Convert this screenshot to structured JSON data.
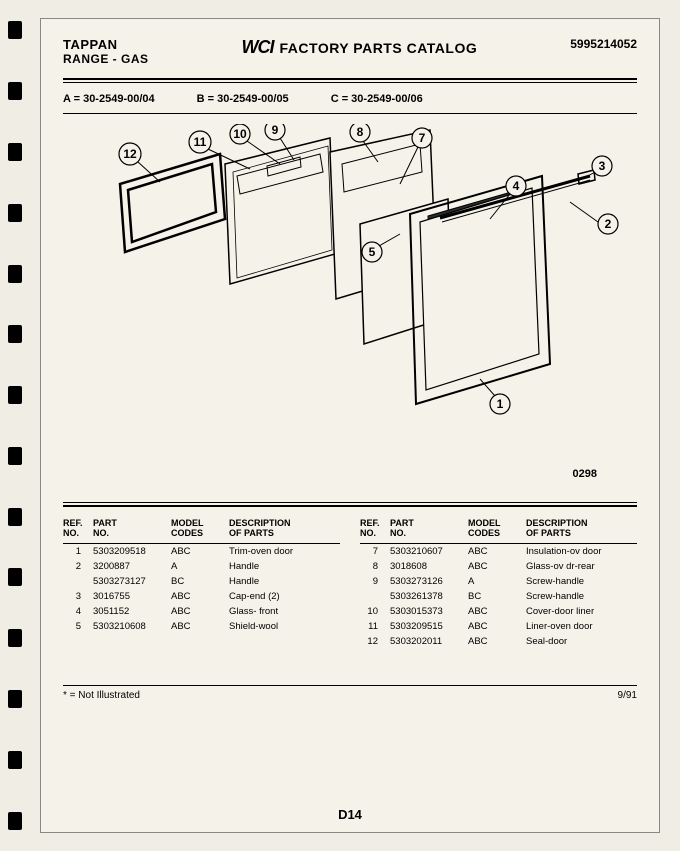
{
  "header": {
    "brand": "TAPPAN",
    "subbrand": "RANGE - GAS",
    "logo": "WCI",
    "title": "FACTORY PARTS CATALOG",
    "docno": "5995214052"
  },
  "models": {
    "a": "A = 30-2549-00/04",
    "b": "B = 30-2549-00/05",
    "c": "C = 30-2549-00/06"
  },
  "diagram": {
    "code": "0298",
    "callouts": [
      "1",
      "2",
      "3",
      "4",
      "5",
      "7",
      "8",
      "9",
      "10",
      "11",
      "12"
    ],
    "stroke": "#000000",
    "dark_fill": "#2a2a2a",
    "bg": "#f5f2e9"
  },
  "table": {
    "headers": {
      "ref": "REF.\nNO.",
      "part": "PART\nNO.",
      "model": "MODEL\nCODES",
      "desc": "DESCRIPTION\nOF PARTS"
    },
    "left": [
      {
        "ref": "1",
        "part": "5303209518",
        "model": "ABC",
        "desc": "Trim-oven door"
      },
      {
        "ref": "2",
        "part": "3200887",
        "model": "A",
        "desc": "Handle"
      },
      {
        "ref": "",
        "part": "5303273127",
        "model": "BC",
        "desc": "Handle"
      },
      {
        "ref": "3",
        "part": "3016755",
        "model": "ABC",
        "desc": "Cap-end (2)"
      },
      {
        "ref": "4",
        "part": "3051152",
        "model": "ABC",
        "desc": "Glass- front"
      },
      {
        "ref": "5",
        "part": "5303210608",
        "model": "ABC",
        "desc": "Shield-wool"
      }
    ],
    "right": [
      {
        "ref": "7",
        "part": "5303210607",
        "model": "ABC",
        "desc": "Insulation-ov door"
      },
      {
        "ref": "8",
        "part": "3018608",
        "model": "ABC",
        "desc": "Glass-ov dr-rear"
      },
      {
        "ref": "9",
        "part": "5303273126",
        "model": "A",
        "desc": "Screw-handle"
      },
      {
        "ref": "",
        "part": "5303261378",
        "model": "BC",
        "desc": "Screw-handle"
      },
      {
        "ref": "10",
        "part": "5303015373",
        "model": "ABC",
        "desc": "Cover-door liner"
      },
      {
        "ref": "11",
        "part": "5303209515",
        "model": "ABC",
        "desc": "Liner-oven door"
      },
      {
        "ref": "12",
        "part": "5303202011",
        "model": "ABC",
        "desc": "Seal-door"
      }
    ]
  },
  "footer": {
    "note": "* = Not Illustrated",
    "page": "D14",
    "date": "9/91"
  },
  "colors": {
    "page_bg": "#f5f2e9",
    "body_bg": "#f0ede4",
    "text": "#000000"
  }
}
